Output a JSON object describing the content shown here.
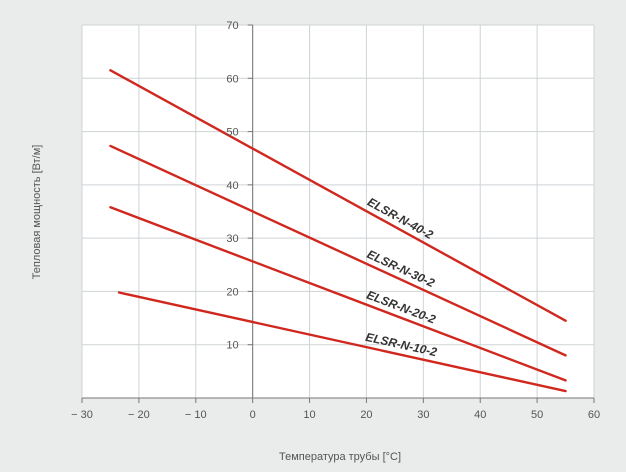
{
  "chart_data": {
    "type": "line",
    "title": "",
    "xlabel": "Температура трубы [°C]",
    "ylabel": "Тепловая мощность [Вт/м]",
    "xlim": [
      -30,
      60
    ],
    "ylim": [
      0,
      70
    ],
    "xticks": [
      -30,
      -20,
      -10,
      0,
      10,
      20,
      30,
      40,
      50,
      60
    ],
    "xtick_labels": [
      "− 30",
      "− 20",
      "− 10",
      "0",
      "10",
      "20",
      "30",
      "40",
      "50",
      "60"
    ],
    "yticks": [
      10,
      20,
      30,
      40,
      50,
      60,
      70
    ],
    "ytick_labels": [
      "10",
      "20",
      "30",
      "40",
      "50",
      "60",
      "70"
    ],
    "grid": true,
    "series": [
      {
        "name": "ELSR-N-40-2",
        "x": [
          -25,
          55
        ],
        "y": [
          61.5,
          14.5
        ],
        "color": "#d0281f"
      },
      {
        "name": "ELSR-N-30-2",
        "x": [
          -25,
          55
        ],
        "y": [
          47.3,
          8.0
        ],
        "color": "#d0281f"
      },
      {
        "name": "ELSR-N-20-2",
        "x": [
          -25,
          55
        ],
        "y": [
          35.8,
          3.3
        ],
        "color": "#d0281f"
      },
      {
        "name": "ELSR-N-10-2",
        "x": [
          -23.5,
          55
        ],
        "y": [
          19.8,
          1.3
        ],
        "color": "#d0281f"
      }
    ]
  }
}
